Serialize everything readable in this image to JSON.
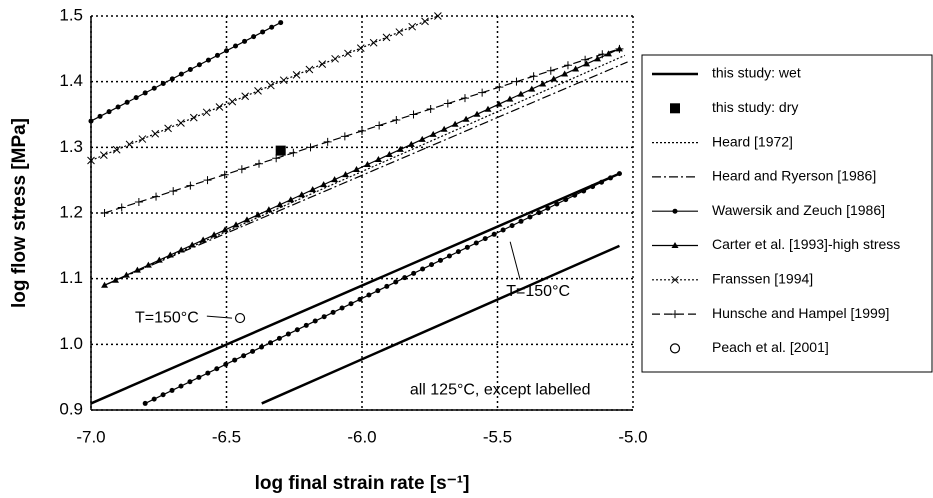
{
  "chart_data": {
    "type": "line",
    "xlabel": "log final strain rate [s⁻¹]",
    "ylabel": "log flow stress [MPa]",
    "xlim": [
      -7,
      -5
    ],
    "ylim": [
      0.9,
      1.5
    ],
    "xticks": [
      {
        "value": -7,
        "label": "-7.0"
      },
      -6.5,
      {
        "value": -6,
        "label": "-6.0"
      },
      -5.5,
      {
        "value": -5,
        "label": "-5.0"
      }
    ],
    "yticks": [
      0.9,
      {
        "value": 1,
        "label": "1.0"
      },
      1.1,
      1.2,
      1.3,
      1.4,
      1.5
    ],
    "grid": true,
    "legend": "right",
    "series": [
      {
        "name": "this study: wet",
        "color": "#000000",
        "line_style": "solid",
        "marker": "none",
        "x": [
          -7.0,
          -5.05,
          null,
          -6.37,
          -5.05
        ],
        "values": [
          0.91,
          1.26,
          null,
          0.91,
          1.15
        ]
      },
      {
        "name": "this study: dry",
        "color": "#000000",
        "line_style": "none",
        "marker": "square",
        "x": [
          -6.3
        ],
        "values": [
          1.295
        ]
      },
      {
        "name": "Heard [1972]",
        "color": "#000000",
        "line_style": "dotted",
        "marker": "none",
        "x": [
          -6.95,
          -5.03
        ],
        "values": [
          1.09,
          1.44
        ]
      },
      {
        "name": "Heard and Ryerson [1986]",
        "color": "#000000",
        "line_style": "dashdot",
        "marker": "none",
        "x": [
          -6.95,
          -5.02
        ],
        "values": [
          1.09,
          1.43
        ]
      },
      {
        "name": "Wawersik and Zeuch [1986]",
        "color": "#000000",
        "line_style": "solid",
        "marker": "circle",
        "x": [
          -7.0,
          -6.3,
          null,
          -6.8,
          -5.05
        ],
        "values": [
          1.34,
          1.49,
          null,
          0.91,
          1.26
        ]
      },
      {
        "name": "Carter et al. [1993]-high stress",
        "color": "#000000",
        "line_style": "solid",
        "marker": "triangle",
        "x": [
          -6.95,
          -5.05
        ],
        "values": [
          1.09,
          1.45
        ]
      },
      {
        "name": "Franssen [1994]",
        "color": "#000000",
        "line_style": "dotted",
        "marker": "x",
        "x": [
          -7.0,
          -5.72
        ],
        "values": [
          1.28,
          1.5
        ]
      },
      {
        "name": "Hunsche and Hampel [1999]",
        "color": "#000000",
        "line_style": "dashed",
        "marker": "plus",
        "x": [
          -6.95,
          -5.05
        ],
        "values": [
          1.2,
          1.45
        ]
      },
      {
        "name": "Peach et al. [2001]",
        "color": "#000000",
        "line_style": "none",
        "marker": "open-circle",
        "x": [
          -6.45
        ],
        "values": [
          1.04
        ]
      }
    ],
    "annotations": [
      {
        "text": "T=150°C",
        "x": -6.72,
        "y": 1.04
      },
      {
        "text": "T=150°C",
        "x": -5.35,
        "y": 1.08
      },
      {
        "text": "all 125°C, except labelled",
        "x": -5.49,
        "y": 0.93
      }
    ]
  }
}
